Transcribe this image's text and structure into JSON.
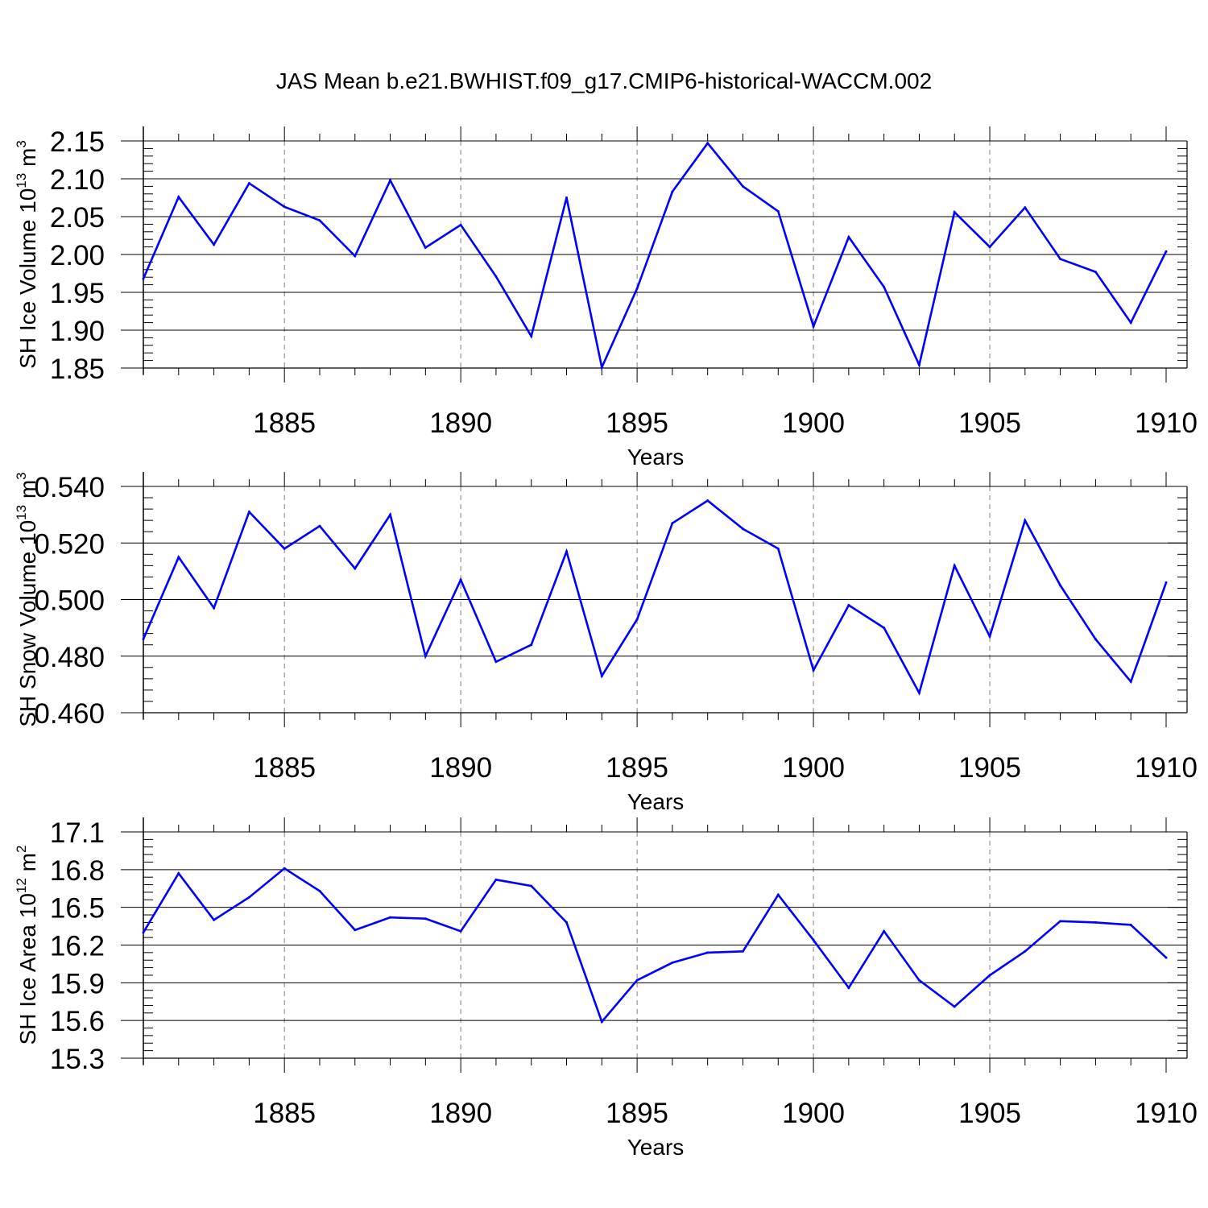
{
  "title": "JAS Mean b.e21.BWHIST.f09_g17.CMIP6-historical-WACCM.002",
  "colors": {
    "line": "#0000ff",
    "axis": "#000000",
    "grid": "#808080"
  },
  "chart_data": [
    {
      "type": "line",
      "xlabel": "Years",
      "ylabel": "SH Ice Volume 10",
      "ylabel_sup": "13",
      "ylabel_unit": "m",
      "ylabel_unit_sup": "3",
      "xlim": [
        1881,
        1910
      ],
      "ylim": [
        1.85,
        2.15
      ],
      "xticks": [
        1885,
        1890,
        1895,
        1900,
        1905,
        1910
      ],
      "xtick_labels": [
        "1885",
        "1890",
        "1895",
        "1900",
        "1905",
        "1910"
      ],
      "yticks": [
        1.85,
        1.9,
        1.95,
        2.0,
        2.05,
        2.1,
        2.15
      ],
      "ytick_labels": [
        "1.85",
        "1.90",
        "1.95",
        "2.00",
        "2.05",
        "2.10",
        "2.15"
      ],
      "grid": "vertical dashed at major x ticks",
      "x": [
        1881,
        1882,
        1883,
        1884,
        1885,
        1886,
        1887,
        1888,
        1889,
        1890,
        1891,
        1892,
        1893,
        1894,
        1895,
        1896,
        1897,
        1898,
        1899,
        1900,
        1901,
        1902,
        1903,
        1904,
        1905,
        1906,
        1907,
        1908,
        1909,
        1910
      ],
      "values": [
        1.968,
        2.076,
        2.013,
        2.094,
        2.063,
        2.045,
        1.998,
        2.098,
        2.009,
        2.039,
        1.971,
        1.892,
        2.075,
        1.851,
        1.955,
        2.083,
        2.147,
        2.09,
        2.057,
        1.905,
        2.023,
        1.957,
        1.854,
        2.056,
        2.01,
        2.062,
        1.994,
        1.977,
        1.91,
        2.004
      ]
    },
    {
      "type": "line",
      "xlabel": "Years",
      "ylabel": "SH Snow Volume 10",
      "ylabel_sup": "13",
      "ylabel_unit": "m",
      "ylabel_unit_sup": "3",
      "xlim": [
        1881,
        1910
      ],
      "ylim": [
        0.46,
        0.54
      ],
      "xticks": [
        1885,
        1890,
        1895,
        1900,
        1905,
        1910
      ],
      "xtick_labels": [
        "1885",
        "1890",
        "1895",
        "1900",
        "1905",
        "1910"
      ],
      "yticks": [
        0.46,
        0.48,
        0.5,
        0.52,
        0.54
      ],
      "ytick_labels": [
        "0.460",
        "0.480",
        "0.500",
        "0.520",
        "0.540"
      ],
      "grid": "vertical dashed at major x ticks",
      "x": [
        1881,
        1882,
        1883,
        1884,
        1885,
        1886,
        1887,
        1888,
        1889,
        1890,
        1891,
        1892,
        1893,
        1894,
        1895,
        1896,
        1897,
        1898,
        1899,
        1900,
        1901,
        1902,
        1903,
        1904,
        1905,
        1906,
        1907,
        1908,
        1909,
        1910
      ],
      "values": [
        0.486,
        0.515,
        0.497,
        0.531,
        0.518,
        0.526,
        0.511,
        0.53,
        0.48,
        0.507,
        0.478,
        0.484,
        0.517,
        0.473,
        0.493,
        0.527,
        0.535,
        0.525,
        0.518,
        0.475,
        0.498,
        0.49,
        0.467,
        0.512,
        0.487,
        0.528,
        0.505,
        0.486,
        0.471,
        0.506
      ]
    },
    {
      "type": "line",
      "xlabel": "Years",
      "ylabel": "SH Ice Area 10",
      "ylabel_sup": "12",
      "ylabel_unit": "m",
      "ylabel_unit_sup": "2",
      "xlim": [
        1881,
        1910
      ],
      "ylim": [
        15.3,
        17.1
      ],
      "xticks": [
        1885,
        1890,
        1895,
        1900,
        1905,
        1910
      ],
      "xtick_labels": [
        "1885",
        "1890",
        "1895",
        "1900",
        "1905",
        "1910"
      ],
      "yticks": [
        15.3,
        15.6,
        15.9,
        16.2,
        16.5,
        16.8,
        17.1
      ],
      "ytick_labels": [
        "15.3",
        "15.6",
        "15.9",
        "16.2",
        "16.5",
        "16.8",
        "17.1"
      ],
      "grid": "vertical dashed at major x ticks",
      "x": [
        1881,
        1882,
        1883,
        1884,
        1885,
        1886,
        1887,
        1888,
        1889,
        1890,
        1891,
        1892,
        1893,
        1894,
        1895,
        1896,
        1897,
        1898,
        1899,
        1900,
        1901,
        1902,
        1903,
        1904,
        1905,
        1906,
        1907,
        1908,
        1909,
        1910
      ],
      "values": [
        16.3,
        16.77,
        16.4,
        16.58,
        16.81,
        16.63,
        16.32,
        16.42,
        16.41,
        16.31,
        16.72,
        16.67,
        16.38,
        15.59,
        15.92,
        16.06,
        16.14,
        16.15,
        16.6,
        16.24,
        15.86,
        16.31,
        15.92,
        15.71,
        15.96,
        16.15,
        16.39,
        16.38,
        16.36,
        16.1
      ]
    }
  ]
}
